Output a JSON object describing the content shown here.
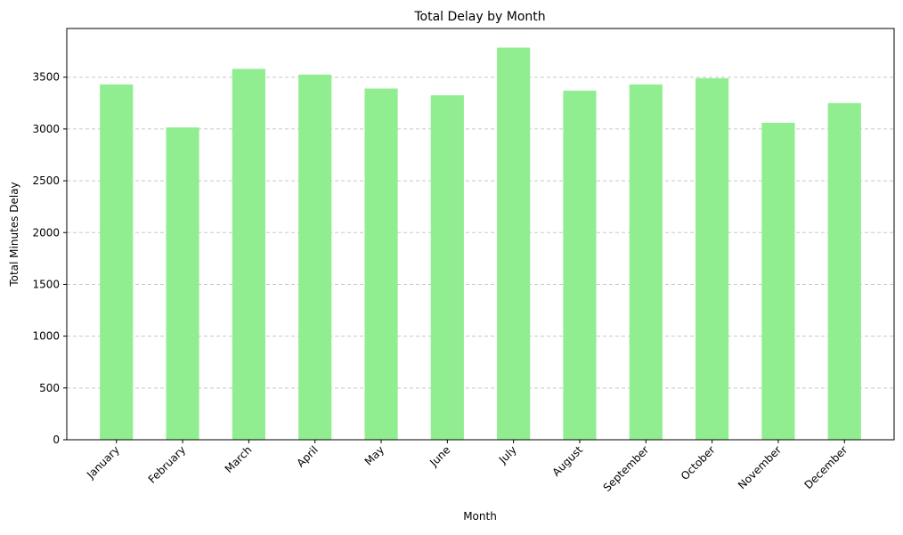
{
  "chart_data": {
    "type": "bar",
    "title": "Total Delay by Month",
    "xlabel": "Month",
    "ylabel": "Total Minutes Delay",
    "categories": [
      "January",
      "February",
      "March",
      "April",
      "May",
      "June",
      "July",
      "August",
      "September",
      "October",
      "November",
      "December"
    ],
    "values": [
      3430,
      3015,
      3580,
      3525,
      3390,
      3325,
      3785,
      3370,
      3430,
      3490,
      3060,
      3250
    ],
    "ylim": [
      0,
      3970
    ],
    "yticks": [
      0,
      500,
      1000,
      1500,
      2000,
      2500,
      3000,
      3500
    ],
    "ytick_labels": [
      "0",
      "500",
      "1000",
      "1500",
      "2000",
      "2500",
      "3000",
      "3500"
    ],
    "grid": "y-dashed",
    "legend": "none",
    "bar_color": "#90ee90",
    "grid_color": "#c8c8c8"
  }
}
